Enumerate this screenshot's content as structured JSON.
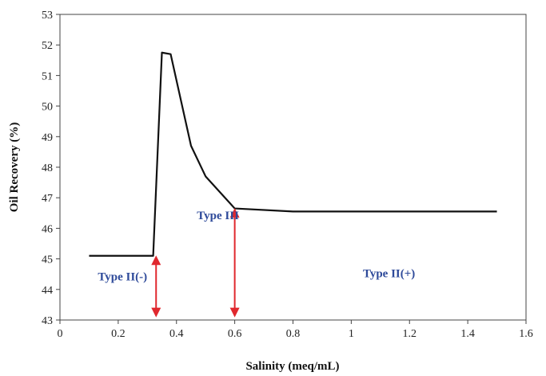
{
  "chart_data": {
    "type": "line",
    "xlabel": "Salinity (meq/mL)",
    "ylabel": "Oil Recovery (%)",
    "xlim": [
      0,
      1.6
    ],
    "ylim": [
      43,
      53
    ],
    "x_ticks": [
      "0",
      "0.2",
      "0.4",
      "0.6",
      "0.8",
      "1",
      "1.2",
      "1.4",
      "1.6"
    ],
    "y_ticks": [
      "43",
      "44",
      "45",
      "46",
      "47",
      "48",
      "49",
      "50",
      "51",
      "52",
      "53"
    ],
    "grid": false,
    "legend": "none",
    "series": [
      {
        "color": "#111111",
        "x": [
          0.1,
          0.32,
          0.35,
          0.38,
          0.45,
          0.5,
          0.6,
          0.8,
          1.0,
          1.5
        ],
        "y": [
          45.1,
          45.1,
          51.75,
          51.7,
          48.7,
          47.7,
          46.65,
          46.55,
          46.55,
          46.55
        ]
      }
    ],
    "annotations": [
      {
        "text": "Type II(-)",
        "x": 0.13,
        "y": 44.3
      },
      {
        "text": "Type III",
        "x": 0.47,
        "y": 46.3
      },
      {
        "text": "Type II(+)",
        "x": 1.04,
        "y": 44.4
      }
    ],
    "arrows": [
      {
        "x": 0.33,
        "y_from": 45.05,
        "y_to": 43.15,
        "color": "#e0282e"
      },
      {
        "x": 0.6,
        "y_from": 46.6,
        "y_to": 43.15,
        "color": "#e0282e"
      }
    ]
  }
}
